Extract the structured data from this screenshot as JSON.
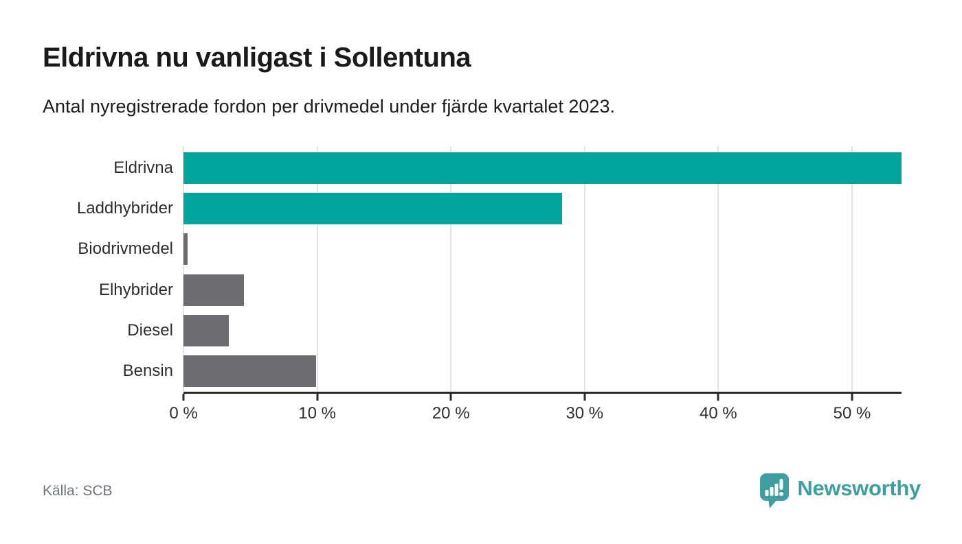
{
  "header": {
    "title": "Eldrivna nu vanligast i Sollentuna",
    "subtitle": "Antal nyregistrerade fordon per drivmedel under fjärde kvartalet 2023."
  },
  "chart_data": {
    "type": "bar",
    "orientation": "horizontal",
    "title": "Eldrivna nu vanligast i Sollentuna",
    "xlabel": "",
    "ylabel": "",
    "unit": "%",
    "categories": [
      "Eldrivna",
      "Laddhybrider",
      "Biodrivmedel",
      "Elhybrider",
      "Diesel",
      "Bensin"
    ],
    "values": [
      53.7,
      28.3,
      0.3,
      4.5,
      3.4,
      9.9
    ],
    "bar_colors": [
      "#00a49c",
      "#00a49c",
      "#6c6c71",
      "#6c6c71",
      "#6c6c71",
      "#6c6c71"
    ],
    "highlight_color": "#00a49c",
    "default_color": "#6c6c71",
    "xlim": [
      0,
      53.7
    ],
    "x_ticks": [
      0,
      10,
      20,
      30,
      40,
      50
    ],
    "x_tick_labels": [
      "0 %",
      "10 %",
      "20 %",
      "30 %",
      "40 %",
      "50 %"
    ],
    "grid": true,
    "legend": false
  },
  "footer": {
    "source": "Källa: SCB",
    "brand": "Newsworthy",
    "brand_color": "#3f9fa0"
  }
}
